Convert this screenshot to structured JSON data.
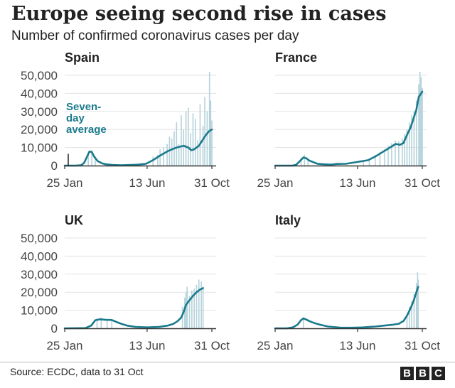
{
  "header": {
    "title": "Europe seeing second rise in cases",
    "subtitle": "Number of confirmed coronavirus cases per day"
  },
  "footer": {
    "source": "Source: ECDC, data to 31 Oct",
    "logo_letters": [
      "B",
      "B",
      "C"
    ]
  },
  "colors": {
    "line": "#1a7a8c",
    "bars": "#b4d2db",
    "axis": "#333333",
    "grid": "#e3e3e3"
  },
  "chart_data": [
    {
      "type": "bar",
      "title": "Spain",
      "x": [
        "25 Jan",
        "13 Jun",
        "31 Oct"
      ],
      "y_ticks": [
        "0",
        "10,000",
        "20,000",
        "30,000",
        "40,000",
        "50,000"
      ],
      "ylim": [
        0,
        50000
      ],
      "annotation": "Seven-day average",
      "series": [
        {
          "name": "Seven-day average",
          "type": "line",
          "points": [
            [
              0,
              0
            ],
            [
              18,
              0
            ],
            [
              28,
              200
            ],
            [
              33,
              1500
            ],
            [
              38,
              5000
            ],
            [
              42,
              7800
            ],
            [
              46,
              7500
            ],
            [
              50,
              5000
            ],
            [
              56,
              2500
            ],
            [
              64,
              1200
            ],
            [
              70,
              700
            ],
            [
              80,
              400
            ],
            [
              95,
              200
            ],
            [
              110,
              300
            ],
            [
              125,
              500
            ],
            [
              138,
              1000
            ],
            [
              150,
              3000
            ],
            [
              162,
              5500
            ],
            [
              175,
              8000
            ],
            [
              190,
              10000
            ],
            [
              202,
              11000
            ],
            [
              210,
              10000
            ],
            [
              215,
              8500
            ],
            [
              220,
              9000
            ],
            [
              228,
              11000
            ],
            [
              233,
              13500
            ],
            [
              240,
              17000
            ],
            [
              245,
              19000
            ],
            [
              250,
              20000
            ]
          ]
        },
        {
          "name": "Daily cases",
          "type": "bar",
          "points": [
            [
              40,
              6000
            ],
            [
              46,
              8500
            ],
            [
              52,
              5000
            ],
            [
              150,
              5000
            ],
            [
              158,
              6000
            ],
            [
              162,
              9000
            ],
            [
              168,
              10000
            ],
            [
              174,
              12000
            ],
            [
              178,
              16000
            ],
            [
              182,
              15000
            ],
            [
              186,
              19000
            ],
            [
              190,
              24000
            ],
            [
              194,
              12000
            ],
            [
              198,
              28000
            ],
            [
              202,
              20000
            ],
            [
              206,
              30000
            ],
            [
              210,
              32000
            ],
            [
              214,
              18000
            ],
            [
              218,
              29000
            ],
            [
              222,
              26000
            ],
            [
              226,
              14000
            ],
            [
              230,
              34000
            ],
            [
              235,
              22000
            ],
            [
              238,
              38000
            ],
            [
              242,
              30000
            ],
            [
              246,
              52000
            ],
            [
              248,
              36000
            ],
            [
              250,
              25000
            ]
          ]
        }
      ]
    },
    {
      "type": "bar",
      "title": "France",
      "x": [
        "25 Jan",
        "13 Jun",
        "31 Oct"
      ],
      "ylim": [
        0,
        50000
      ],
      "series": [
        {
          "name": "Seven-day average",
          "type": "line",
          "points": [
            [
              0,
              0
            ],
            [
              30,
              0
            ],
            [
              36,
              500
            ],
            [
              42,
              2500
            ],
            [
              48,
              4500
            ],
            [
              53,
              4000
            ],
            [
              58,
              2800
            ],
            [
              64,
              2000
            ],
            [
              72,
              1000
            ],
            [
              82,
              700
            ],
            [
              95,
              500
            ],
            [
              105,
              900
            ],
            [
              120,
              1000
            ],
            [
              140,
              2000
            ],
            [
              158,
              3000
            ],
            [
              170,
              5000
            ],
            [
              185,
              8000
            ],
            [
              195,
              10000
            ],
            [
              205,
              12000
            ],
            [
              212,
              11500
            ],
            [
              218,
              12500
            ],
            [
              224,
              17000
            ],
            [
              230,
              21000
            ],
            [
              235,
              26000
            ],
            [
              240,
              31000
            ],
            [
              244,
              38000
            ],
            [
              250,
              41000
            ]
          ]
        },
        {
          "name": "Daily cases",
          "type": "bar",
          "points": [
            [
              44,
              4000
            ],
            [
              50,
              6000
            ],
            [
              56,
              3000
            ],
            [
              150,
              2500
            ],
            [
              160,
              4000
            ],
            [
              170,
              6000
            ],
            [
              178,
              7500
            ],
            [
              186,
              9000
            ],
            [
              192,
              11000
            ],
            [
              198,
              12500
            ],
            [
              204,
              14000
            ],
            [
              210,
              13500
            ],
            [
              216,
              15000
            ],
            [
              220,
              17500
            ],
            [
              224,
              20000
            ],
            [
              228,
              24000
            ],
            [
              232,
              28000
            ],
            [
              236,
              30000
            ],
            [
              240,
              36000
            ],
            [
              244,
              45000
            ],
            [
              246,
              52000
            ],
            [
              248,
              49000
            ],
            [
              250,
              43000
            ]
          ]
        }
      ]
    },
    {
      "type": "bar",
      "title": "UK",
      "x": [
        "25 Jan",
        "13 Jun",
        "31 Oct"
      ],
      "y_ticks": [
        "0",
        "10,000",
        "20,000",
        "30,000",
        "40,000",
        "50,000"
      ],
      "ylim": [
        0,
        50000
      ],
      "series": [
        {
          "name": "Seven-day average",
          "type": "line",
          "points": [
            [
              0,
              0
            ],
            [
              35,
              100
            ],
            [
              45,
              1500
            ],
            [
              52,
              4500
            ],
            [
              60,
              5000
            ],
            [
              70,
              4700
            ],
            [
              80,
              4600
            ],
            [
              88,
              3500
            ],
            [
              96,
              2500
            ],
            [
              106,
              1500
            ],
            [
              120,
              800
            ],
            [
              140,
              500
            ],
            [
              160,
              800
            ],
            [
              175,
              1500
            ],
            [
              185,
              2500
            ],
            [
              192,
              4000
            ],
            [
              198,
              6000
            ],
            [
              202,
              9000
            ],
            [
              206,
              13000
            ],
            [
              212,
              15500
            ],
            [
              218,
              18000
            ],
            [
              224,
              20000
            ],
            [
              230,
              21500
            ],
            [
              235,
              22300
            ]
          ]
        },
        {
          "name": "Daily cases",
          "type": "bar",
          "points": [
            [
              55,
              5500
            ],
            [
              62,
              6000
            ],
            [
              72,
              5200
            ],
            [
              80,
              5000
            ],
            [
              200,
              12000
            ],
            [
              204,
              17000
            ],
            [
              206,
              20000
            ],
            [
              208,
              23000
            ],
            [
              212,
              18000
            ],
            [
              216,
              21000
            ],
            [
              220,
              22000
            ],
            [
              224,
              24000
            ],
            [
              228,
              27000
            ],
            [
              232,
              26000
            ],
            [
              235,
              23000
            ]
          ]
        }
      ]
    },
    {
      "type": "bar",
      "title": "Italy",
      "x": [
        "25 Jan",
        "13 Jun",
        "31 Oct"
      ],
      "ylim": [
        0,
        50000
      ],
      "series": [
        {
          "name": "Seven-day average",
          "type": "line",
          "points": [
            [
              0,
              0
            ],
            [
              20,
              0
            ],
            [
              30,
              500
            ],
            [
              38,
              2000
            ],
            [
              44,
              4500
            ],
            [
              48,
              5500
            ],
            [
              52,
              5000
            ],
            [
              58,
              4000
            ],
            [
              66,
              3000
            ],
            [
              76,
              2000
            ],
            [
              90,
              1000
            ],
            [
              110,
              400
            ],
            [
              130,
              300
            ],
            [
              150,
              500
            ],
            [
              170,
              1000
            ],
            [
              185,
              1500
            ],
            [
              200,
              2000
            ],
            [
              210,
              2500
            ],
            [
              218,
              4000
            ],
            [
              224,
              7000
            ],
            [
              230,
              11000
            ],
            [
              235,
              15000
            ],
            [
              240,
              20000
            ],
            [
              243,
              23000
            ]
          ]
        },
        {
          "name": "Daily cases",
          "type": "bar",
          "points": [
            [
              48,
              6000
            ],
            [
              224,
              8000
            ],
            [
              228,
              12000
            ],
            [
              232,
              15000
            ],
            [
              236,
              19000
            ],
            [
              240,
              25000
            ],
            [
              242,
              31000
            ],
            [
              243,
              27000
            ]
          ]
        }
      ]
    }
  ]
}
